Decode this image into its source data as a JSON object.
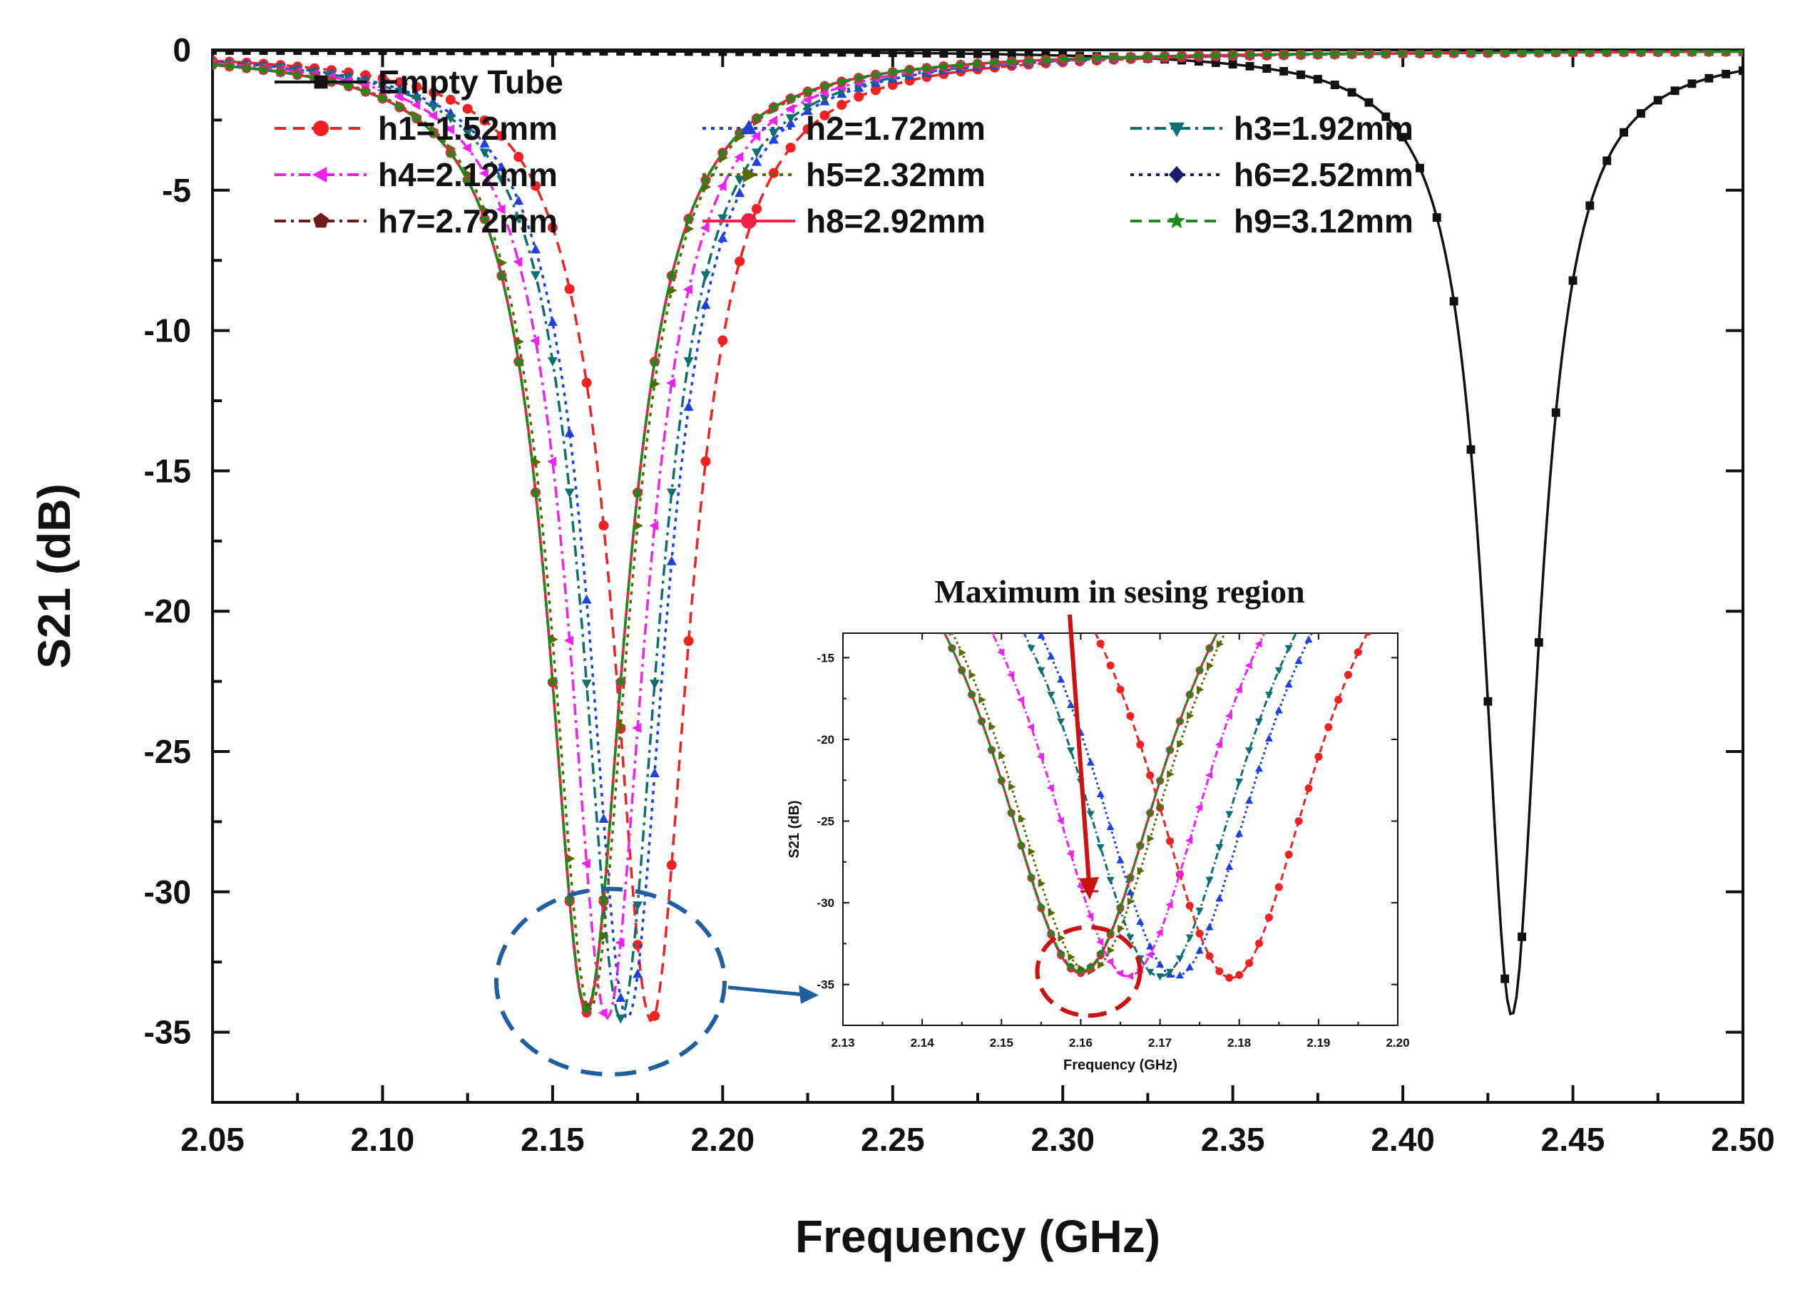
{
  "chart_data": [
    {
      "type": "line",
      "xlabel": "Frequency (GHz)",
      "ylabel": "S21 (dB)",
      "xlim": [
        2.05,
        2.5
      ],
      "ylim": [
        -37.5,
        0
      ],
      "xticks": [
        "2.05",
        "2.10",
        "2.15",
        "2.20",
        "2.25",
        "2.30",
        "2.35",
        "2.40",
        "2.45",
        "2.50"
      ],
      "yticks": [
        "0",
        "-5",
        "-10",
        "-15",
        "-20",
        "-25",
        "-30",
        "-35"
      ],
      "grid": false,
      "legend_position": "top-left",
      "series": [
        {
          "name": "Empty Tube",
          "color": "#111111",
          "marker": "square",
          "dash": "solid",
          "f0": 2.432,
          "min": -34.4,
          "k": 0.19
        },
        {
          "name": "h1=1.52mm",
          "color": "#ee2222",
          "marker": "circle",
          "dash": "dash",
          "f0": 2.179,
          "min": -34.6,
          "k": 0.26
        },
        {
          "name": "h2=1.72mm",
          "color": "#1f3fe0",
          "marker": "triangle-up",
          "dash": "dot",
          "f0": 2.172,
          "min": -34.5,
          "k": 0.26
        },
        {
          "name": "h3=1.92mm",
          "color": "#0f6e6e",
          "marker": "triangle-down",
          "dash": "dashdot",
          "f0": 2.17,
          "min": -34.5,
          "k": 0.26
        },
        {
          "name": "h4=2.12mm",
          "color": "#ee22ee",
          "marker": "triangle-left",
          "dash": "dashdot",
          "f0": 2.166,
          "min": -34.5,
          "k": 0.26
        },
        {
          "name": "h5=2.32mm",
          "color": "#556b00",
          "marker": "triangle-right",
          "dash": "dot",
          "f0": 2.161,
          "min": -34.2,
          "k": 0.26
        },
        {
          "name": "h6=2.52mm",
          "color": "#1a1a6e",
          "marker": "diamond",
          "dash": "dot",
          "f0": 2.16,
          "min": -34.3,
          "k": 0.26
        },
        {
          "name": "h7=2.72mm",
          "color": "#6e1a1a",
          "marker": "pentagon",
          "dash": "dashdot",
          "f0": 2.16,
          "min": -34.2,
          "k": 0.26
        },
        {
          "name": "h8=2.92mm",
          "color": "#ee2244",
          "marker": "circle",
          "dash": "solid",
          "f0": 2.16,
          "min": -34.3,
          "k": 0.26
        },
        {
          "name": "h9=3.12mm",
          "color": "#1a8a1a",
          "marker": "star",
          "dash": "dash",
          "f0": 2.16,
          "min": -34.2,
          "k": 0.26
        }
      ],
      "annotation": {
        "shape": "dashed-ellipse",
        "color": "#1f5fa0",
        "center": [
          2.167,
          -33.2
        ],
        "target": "inset"
      }
    },
    {
      "type": "line",
      "role": "inset",
      "xlabel": "Frequency (GHz)",
      "ylabel": "S21 (dB)",
      "xlim": [
        2.13,
        2.2
      ],
      "ylim": [
        -37.5,
        -13.5
      ],
      "xticks": [
        "2.13",
        "2.14",
        "2.15",
        "2.16",
        "2.17",
        "2.18",
        "2.19",
        "2.20"
      ],
      "yticks": [
        "-15",
        "-20",
        "-25",
        "-30",
        "-35"
      ],
      "series_ref": "h1..h9 from main chart",
      "annotation": {
        "text": "Maximum in sesing region",
        "color": "#cc1111",
        "shape": "dashed-circle",
        "center": [
          2.161,
          -34.2
        ]
      }
    }
  ]
}
